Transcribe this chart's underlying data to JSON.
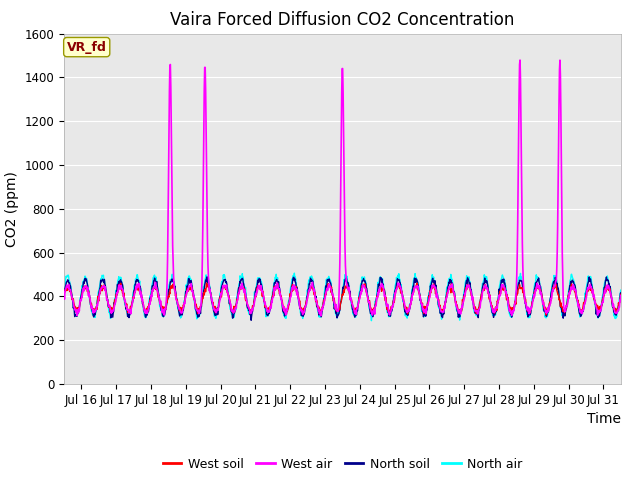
{
  "title": "Vaira Forced Diffusion CO2 Concentration",
  "xlabel": "Time",
  "ylabel": "CO2 (ppm)",
  "ylim": [
    0,
    1600
  ],
  "yticks": [
    0,
    200,
    400,
    600,
    800,
    1000,
    1200,
    1400,
    1600
  ],
  "xlim": [
    15.5,
    31.5
  ],
  "xtick_positions": [
    16,
    17,
    18,
    19,
    20,
    21,
    22,
    23,
    24,
    25,
    26,
    27,
    28,
    29,
    30,
    31
  ],
  "xtick_labels": [
    "Jul 16",
    "Jul 17",
    "Jul 18",
    "Jul 19",
    "Jul 20",
    "Jul 21",
    "Jul 22",
    "Jul 23",
    "Jul 24",
    "Jul 25",
    "Jul 26",
    "Jul 27",
    "Jul 28",
    "Jul 29",
    "Jul 30",
    "Jul 31"
  ],
  "colors": {
    "west_soil": "#ff0000",
    "west_air": "#ff00ff",
    "north_soil": "#00008b",
    "north_air": "#00ffff"
  },
  "spike_positions": [
    18.55,
    19.55,
    23.5,
    28.6,
    29.75
  ],
  "spike_heights": [
    1470,
    1460,
    1455,
    1485,
    1480
  ],
  "background_color": "#e8e8e8",
  "figure_background": "#ffffff",
  "legend_labels": [
    "West soil",
    "West air",
    "North soil",
    "North air"
  ],
  "watermark_text": "VR_fd",
  "watermark_color": "#8b0000",
  "watermark_bg": "#ffffcc",
  "title_fontsize": 12,
  "axis_fontsize": 10,
  "tick_fontsize": 8.5
}
